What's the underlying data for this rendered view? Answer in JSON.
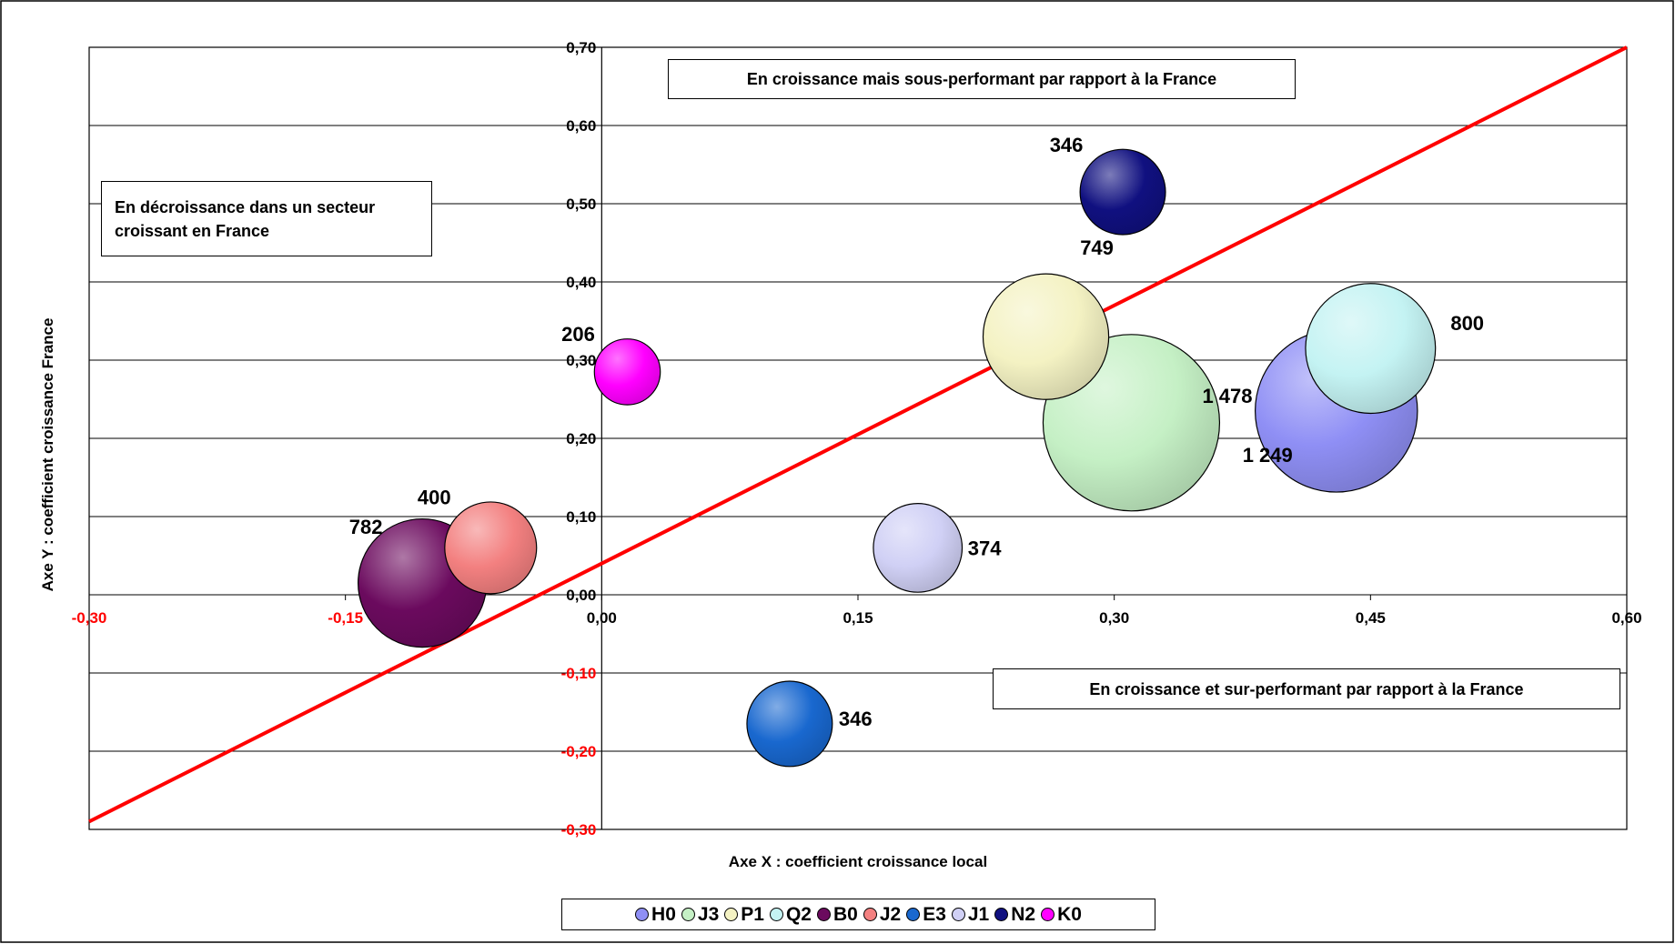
{
  "chart_data": {
    "type": "bubble",
    "title": "",
    "xlabel": "Axe X : coefficient croissance local",
    "ylabel": "Axe Y : coefficient croissance France",
    "xlim": [
      -0.3,
      0.6
    ],
    "ylim": [
      -0.3,
      0.7
    ],
    "x_ticks": [
      "-0,30",
      "-0,15",
      "0,00",
      "0,15",
      "0,30",
      "0,45",
      "0,60"
    ],
    "x_tick_values": [
      -0.3,
      -0.15,
      0.0,
      0.15,
      0.3,
      0.45,
      0.6
    ],
    "y_ticks": [
      "0,70",
      "0,60",
      "0,50",
      "0,40",
      "0,30",
      "0,20",
      "0,10",
      "0,00",
      "-0,10",
      "-0,20",
      "-0,30"
    ],
    "y_tick_values": [
      0.7,
      0.6,
      0.5,
      0.4,
      0.3,
      0.2,
      0.1,
      0.0,
      -0.1,
      -0.2,
      -0.3
    ],
    "grid": "horizontal",
    "legend_position": "bottom",
    "reference_line": {
      "from": [
        -0.3,
        -0.29
      ],
      "to": [
        0.6,
        0.7
      ],
      "color": "#ff0000"
    },
    "series": [
      {
        "name": "H0",
        "x": 0.43,
        "y": 0.235,
        "size": 1249,
        "label": "1 249",
        "color": "#8f8ff5"
      },
      {
        "name": "J3",
        "x": 0.31,
        "y": 0.22,
        "size": 1478,
        "label": "1 478",
        "color": "#c5f0c5"
      },
      {
        "name": "P1",
        "x": 0.26,
        "y": 0.33,
        "size": 749,
        "label": "749",
        "color": "#f4f2c3"
      },
      {
        "name": "Q2",
        "x": 0.45,
        "y": 0.315,
        "size": 800,
        "label": "800",
        "color": "#c4f3f3"
      },
      {
        "name": "B0",
        "x": -0.105,
        "y": 0.015,
        "size": 782,
        "label": "782",
        "color": "#6b0a5e"
      },
      {
        "name": "J2",
        "x": -0.065,
        "y": 0.06,
        "size": 400,
        "label": "400",
        "color": "#f38080"
      },
      {
        "name": "E3",
        "x": 0.11,
        "y": -0.165,
        "size": 346,
        "label": "346",
        "color": "#1968cf"
      },
      {
        "name": "J1",
        "x": 0.185,
        "y": 0.06,
        "size": 374,
        "label": "374",
        "color": "#d0d0f5"
      },
      {
        "name": "N2",
        "x": 0.305,
        "y": 0.515,
        "size": 346,
        "label": "346",
        "color": "#101080"
      },
      {
        "name": "K0",
        "x": 0.015,
        "y": 0.285,
        "size": 206,
        "label": "206",
        "color": "#ff00ff"
      }
    ],
    "annotations": {
      "top": "En croissance mais sous-performant par rapport à la France",
      "left_line1": "En décroissance dans un secteur",
      "left_line2": "croissant en France",
      "bottom": "En croissance et sur-performant par rapport à la France"
    },
    "colors": {
      "axis_negative_tick": "#ff0000",
      "axis_positive_tick": "#000000",
      "reference_line": "#ff0000",
      "gridline": "#000000"
    }
  }
}
